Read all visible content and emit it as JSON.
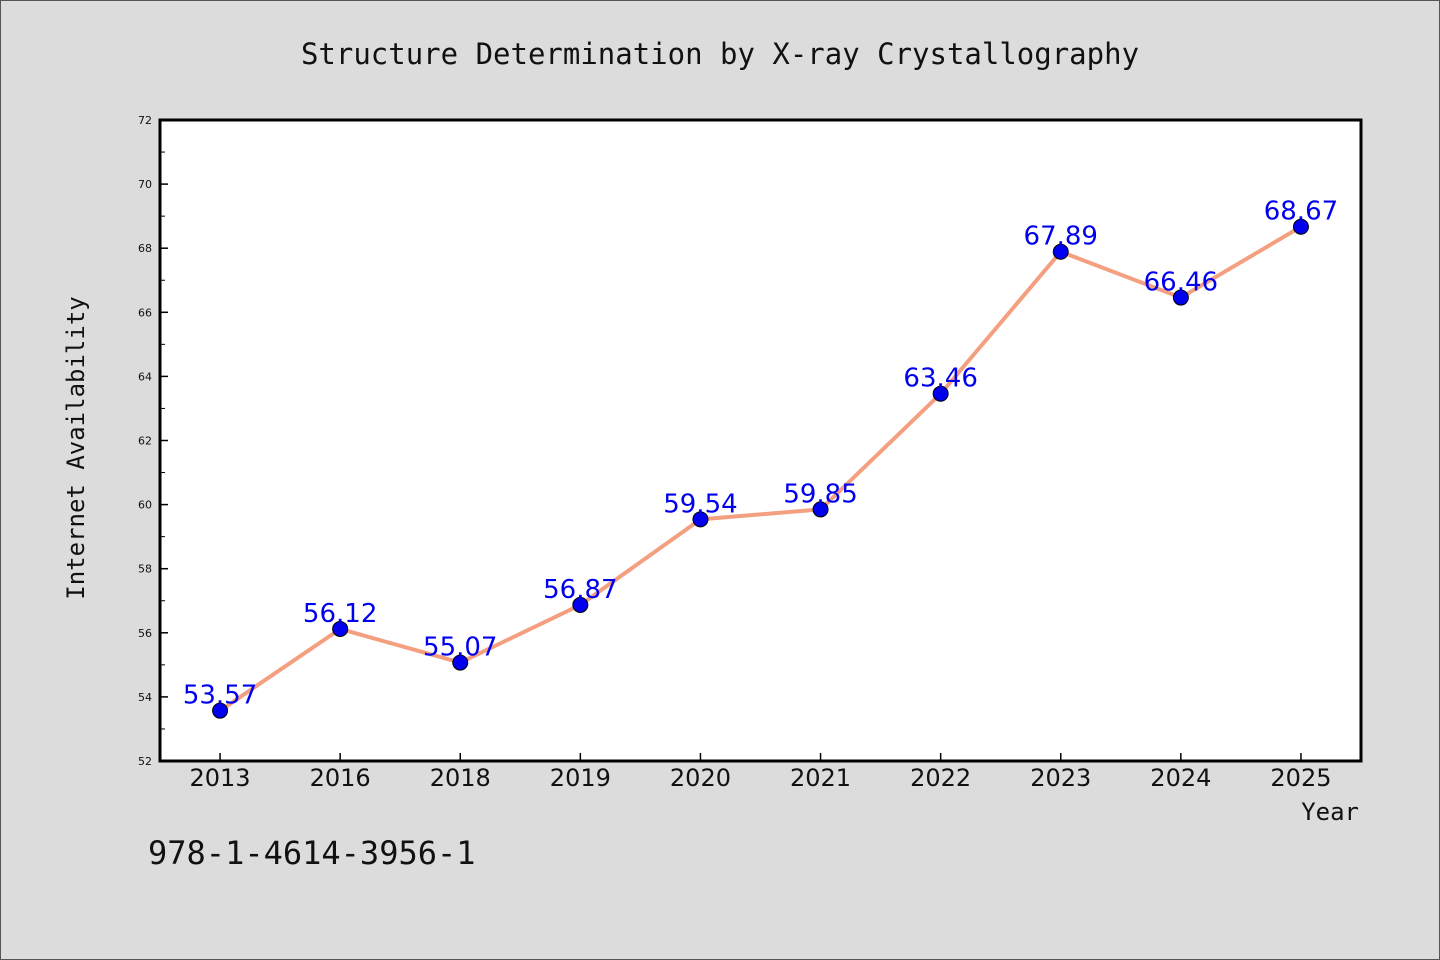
{
  "isbn_text": "978-1-4614-3956-1",
  "chart_data": {
    "type": "line",
    "title": "Structure Determination by X-ray Crystallography",
    "xlabel": "Year",
    "ylabel": "Internet Availability",
    "categories": [
      "2013",
      "2016",
      "2018",
      "2019",
      "2020",
      "2021",
      "2022",
      "2023",
      "2024",
      "2025"
    ],
    "values": [
      53.57,
      56.12,
      55.07,
      56.87,
      59.54,
      59.85,
      63.46,
      67.89,
      66.46,
      68.67
    ],
    "data_labels": [
      "53.57",
      "56.12",
      "55.07",
      "56.87",
      "59.54",
      "59.85",
      "63.46",
      "67.89",
      "66.46",
      "68.67"
    ],
    "ylim": [
      52,
      72
    ],
    "yticks": [
      "52",
      "54",
      "56",
      "58",
      "60",
      "62",
      "64",
      "66",
      "68",
      "70",
      "72"
    ],
    "grid": false,
    "line_color": "#f4a080",
    "marker_color": "#0000ee",
    "label_color": "#0000ee"
  }
}
